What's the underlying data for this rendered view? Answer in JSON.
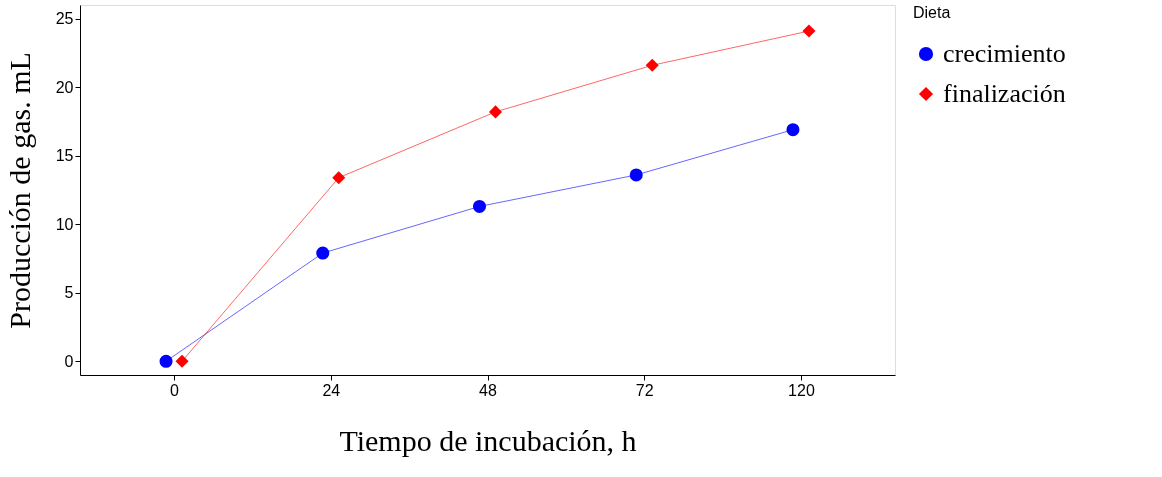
{
  "chart_data": {
    "type": "line",
    "xlabel": "Tiempo de incubación, h",
    "ylabel": "Producción de gas. mL",
    "legend_title": "Dieta",
    "legend": "right",
    "categories": [
      "0",
      "24",
      "48",
      "72",
      "120"
    ],
    "series": [
      {
        "name": "crecimiento",
        "color": "#0000ff",
        "marker": "circle",
        "values": [
          0,
          7.9,
          11.3,
          13.6,
          16.9
        ]
      },
      {
        "name": "finalización",
        "color": "#ff0000",
        "marker": "diamond",
        "values": [
          0,
          13.4,
          18.2,
          21.6,
          24.1
        ]
      }
    ],
    "ylim": [
      -1,
      26
    ],
    "yticks": [
      0,
      5,
      10,
      15,
      20,
      25
    ],
    "grid": false,
    "line_style": "solid"
  }
}
